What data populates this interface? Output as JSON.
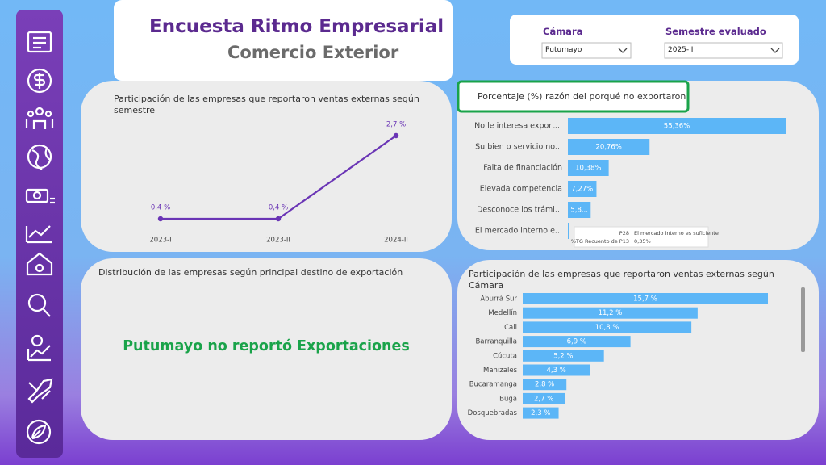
{
  "header": {
    "title": "Encuesta Ritmo Empresarial",
    "subtitle": "Comercio Exterior"
  },
  "filters": [
    {
      "label": "Cámara",
      "value": "Putumayo"
    },
    {
      "label": "Semestre evaluado",
      "value": "2025-II"
    }
  ],
  "chart_data": [
    {
      "type": "line",
      "title": "Participación de las empresas que reportaron ventas externas según semestre",
      "categories": [
        "2023-I",
        "2023-II",
        "2024-II"
      ],
      "values": [
        0.4,
        0.4,
        2.7
      ],
      "value_labels": [
        "0,4 %",
        "0,4 %",
        "2,7 %"
      ],
      "color": "#6a35b5"
    },
    {
      "type": "hbar",
      "title": "Porcentaje (%) razón del porqué no exportaron",
      "categories": [
        "No le interesa export...",
        "Su bien o servicio no...",
        "Falta de financiación",
        "Elevada competencia",
        "Desconoce los trámi...",
        "El mercado interno e..."
      ],
      "values": [
        55.36,
        20.76,
        10.38,
        7.27,
        5.8,
        0.35
      ],
      "value_labels": [
        "55,36%",
        "20,76%",
        "10,38%",
        "7,27%",
        "5,8...",
        null
      ],
      "color": "#5cb6f7",
      "tooltip": {
        "field": "P28",
        "category": "El mercado interno es suficiente",
        "measure": "%TG Recuento de P13",
        "value_label": "0,35%"
      }
    },
    {
      "type": "text",
      "title": "Distribución de las empresas según principal destino de exportación",
      "message": "Putumayo no reportó Exportaciones"
    },
    {
      "type": "hbar",
      "title": "Participación de las empresas que reportaron ventas externas según Cámara",
      "categories": [
        "Aburrá Sur",
        "Medellín",
        "Cali",
        "Barranquilla",
        "Cúcuta",
        "Manizales",
        "Bucaramanga",
        "Buga",
        "Dosquebradas"
      ],
      "values": [
        15.7,
        11.2,
        10.8,
        6.9,
        5.2,
        4.3,
        2.8,
        2.7,
        2.3
      ],
      "value_labels": [
        "15,7 %",
        "11,2 %",
        "10,8 %",
        "6,9 %",
        "5,2 %",
        "4,3 %",
        "2,8 %",
        "2,7 %",
        "2,3 %"
      ],
      "color": "#5cb6f7"
    }
  ]
}
